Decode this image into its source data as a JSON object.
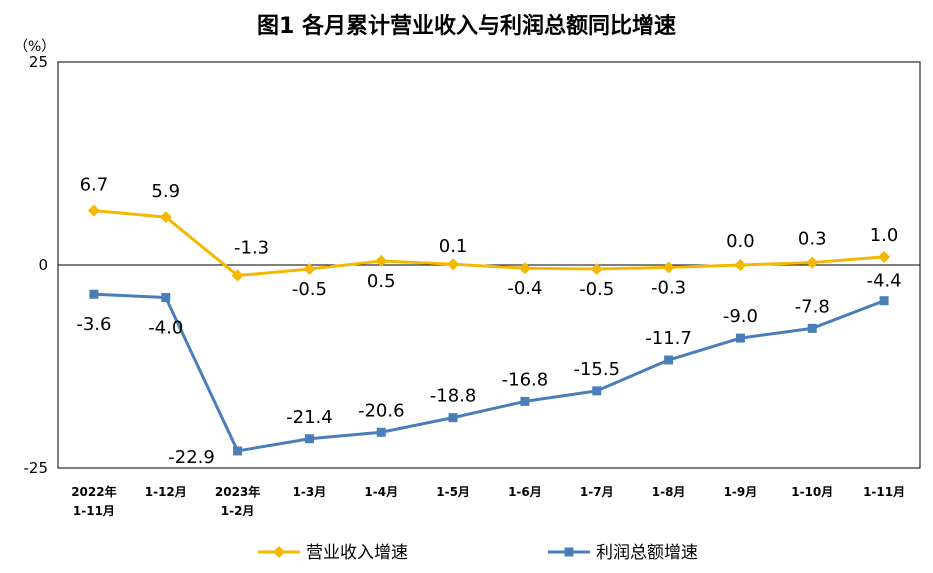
{
  "page": {
    "title": "图1  各月累计营业收入与利润总额同比增速",
    "unit": "（%）"
  },
  "chart_data": {
    "type": "line",
    "title": "图1  各月累计营业收入与利润总额同比增速",
    "ylabel": "（%）",
    "xlabel": "",
    "ylim": [
      -25,
      25
    ],
    "yticks": [
      "25",
      "0",
      "-25"
    ],
    "categories": [
      [
        "2022年",
        "1-11月"
      ],
      [
        "1-12月"
      ],
      [
        "2023年",
        "1-2月"
      ],
      [
        "1-3月"
      ],
      [
        "1-4月"
      ],
      [
        "1-5月"
      ],
      [
        "1-6月"
      ],
      [
        "1-7月"
      ],
      [
        "1-8月"
      ],
      [
        "1-9月"
      ],
      [
        "1-10月"
      ],
      [
        "1-11月"
      ]
    ],
    "series": [
      {
        "name": "营业收入增速",
        "color": "#F5B800",
        "marker": "diamond",
        "values": [
          6.7,
          5.9,
          -1.3,
          -0.5,
          0.5,
          0.1,
          -0.4,
          -0.5,
          -0.3,
          0.0,
          0.3,
          1.0
        ],
        "labels": [
          "6.7",
          "5.9",
          "-1.3",
          "-0.5",
          "0.5",
          "0.1",
          "-0.4",
          "-0.5",
          "-0.3",
          "0.0",
          "0.3",
          "1.0"
        ]
      },
      {
        "name": "利润总额增速",
        "color": "#4A7EBB",
        "marker": "square",
        "values": [
          -3.6,
          -4.0,
          -22.9,
          -21.4,
          -20.6,
          -18.8,
          -16.8,
          -15.5,
          -11.7,
          -9.0,
          -7.8,
          -4.4
        ],
        "labels": [
          "-3.6",
          "-4.0",
          "-22.9",
          "-21.4",
          "-20.6",
          "-18.8",
          "-16.8",
          "-15.5",
          "-11.7",
          "-9.0",
          "-7.8",
          "-4.4"
        ]
      }
    ],
    "legend_position": "bottom",
    "grid": false
  }
}
